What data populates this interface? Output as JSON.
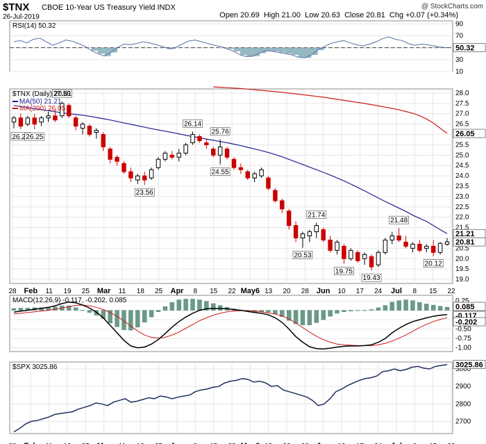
{
  "header": {
    "ticker": "$TNX",
    "description": "CBOE 10-Year US Treasury Yield INDX",
    "date": "26-Jul-2019",
    "open_label": "Open",
    "open": "20.69",
    "high_label": "High",
    "high": "21.00",
    "low_label": "Low",
    "low": "20.63",
    "close_label": "Close",
    "close": "20.81",
    "chg_label": "Chg",
    "chg": "+0.07 (+0.34%)",
    "watermark": "@ StockCharts.com"
  },
  "colors": {
    "up": "#000000",
    "down": "#cc0000",
    "ma50": "#1f1f8f",
    "ma200": "#cc1a1a",
    "hist": "#6a9a88",
    "rsi": "#5a6ea8",
    "spx": "#1f2f5f"
  },
  "chart_data": [
    {
      "type": "line",
      "panel": "rsi",
      "title": "RSI(14) 50.32",
      "last_value": "50.32",
      "y_ticks": [
        "90",
        "70",
        "50",
        "30",
        "10"
      ],
      "ylim": [
        10,
        95
      ],
      "overbought": 70,
      "oversold": 30,
      "values": [
        60,
        62,
        58,
        64,
        66,
        60,
        54,
        58,
        63,
        61,
        57,
        52,
        45,
        40,
        36,
        42,
        50,
        56,
        55,
        57,
        60,
        58,
        55,
        52,
        48,
        50,
        56,
        61,
        63,
        60,
        57,
        54,
        52,
        48,
        44,
        38,
        35,
        36,
        41,
        45,
        44,
        42,
        40,
        38,
        34,
        33,
        38,
        46,
        52,
        57,
        60,
        62,
        58,
        55,
        53,
        56,
        60,
        65,
        68,
        64,
        62,
        57,
        54,
        56,
        55,
        53,
        51,
        50
      ]
    },
    {
      "type": "candlestick",
      "panel": "price",
      "title": "$TNX (Daily) 20.81",
      "y_ticks": [
        "28.0",
        "27.5",
        "27.0",
        "26.5",
        "26.0",
        "25.5",
        "25.0",
        "24.5",
        "24.0",
        "23.5",
        "23.0",
        "22.5",
        "22.0",
        "21.5",
        "21.0",
        "20.5",
        "20.0",
        "19.5",
        "19.0"
      ],
      "ylim": [
        18.8,
        28.2
      ],
      "last_close_label": "20.81",
      "annotations": [
        {
          "text": "26.26",
          "idx": 1,
          "value": 26.26,
          "pos": "below"
        },
        {
          "text": "26.25",
          "idx": 3,
          "value": 26.25,
          "pos": "below"
        },
        {
          "text": "27.59",
          "idx": 7,
          "value": 27.59,
          "pos": "above"
        },
        {
          "text": "23.56",
          "idx": 19,
          "value": 23.56,
          "pos": "below"
        },
        {
          "text": "26.14",
          "idx": 26,
          "value": 26.14,
          "pos": "above"
        },
        {
          "text": "25.76",
          "idx": 30,
          "value": 25.76,
          "pos": "above"
        },
        {
          "text": "24.55",
          "idx": 30,
          "value": 24.55,
          "pos": "below"
        },
        {
          "text": "21.74",
          "idx": 44,
          "value": 21.74,
          "pos": "above"
        },
        {
          "text": "20.53",
          "idx": 42,
          "value": 20.53,
          "pos": "below"
        },
        {
          "text": "19.75",
          "idx": 48,
          "value": 19.75,
          "pos": "below"
        },
        {
          "text": "19.43",
          "idx": 52,
          "value": 19.43,
          "pos": "below"
        },
        {
          "text": "21.48",
          "idx": 56,
          "value": 21.48,
          "pos": "above"
        },
        {
          "text": "20.12",
          "idx": 61,
          "value": 20.12,
          "pos": "below"
        }
      ],
      "ohlc": [
        [
          26.6,
          26.9,
          26.3,
          26.8
        ],
        [
          26.8,
          27.0,
          26.26,
          26.4
        ],
        [
          26.5,
          26.9,
          26.4,
          26.8
        ],
        [
          26.8,
          27.0,
          26.25,
          26.5
        ],
        [
          26.6,
          26.9,
          26.4,
          26.8
        ],
        [
          26.8,
          27.1,
          26.6,
          26.9
        ],
        [
          26.9,
          27.2,
          26.6,
          26.7
        ],
        [
          26.9,
          27.59,
          26.8,
          27.5
        ],
        [
          27.4,
          27.5,
          26.8,
          26.9
        ],
        [
          26.8,
          26.9,
          26.2,
          26.4
        ],
        [
          26.3,
          26.6,
          26.0,
          26.5
        ],
        [
          26.4,
          26.5,
          25.9,
          26.0
        ],
        [
          26.1,
          26.3,
          25.8,
          26.2
        ],
        [
          26.0,
          26.1,
          25.2,
          25.4
        ],
        [
          25.3,
          25.4,
          24.6,
          24.8
        ],
        [
          24.9,
          25.0,
          24.5,
          24.7
        ],
        [
          24.6,
          24.7,
          24.1,
          24.2
        ],
        [
          24.2,
          24.4,
          23.7,
          23.9
        ],
        [
          23.8,
          24.1,
          23.6,
          24.0
        ],
        [
          24.0,
          24.2,
          23.56,
          23.8
        ],
        [
          23.9,
          24.4,
          23.8,
          24.3
        ],
        [
          24.4,
          24.9,
          24.3,
          24.8
        ],
        [
          24.8,
          25.2,
          24.7,
          25.1
        ],
        [
          25.0,
          25.2,
          24.8,
          24.9
        ],
        [
          24.9,
          25.3,
          24.7,
          25.1
        ],
        [
          25.1,
          25.6,
          25.0,
          25.5
        ],
        [
          25.6,
          26.14,
          25.5,
          26.0
        ],
        [
          25.9,
          26.0,
          25.6,
          25.7
        ],
        [
          25.6,
          25.8,
          25.3,
          25.5
        ],
        [
          25.3,
          25.4,
          24.9,
          25.0
        ],
        [
          25.0,
          25.76,
          24.55,
          25.4
        ],
        [
          25.3,
          25.4,
          24.8,
          24.9
        ],
        [
          24.8,
          24.9,
          24.3,
          24.4
        ],
        [
          24.4,
          24.6,
          24.1,
          24.3
        ],
        [
          24.2,
          24.3,
          23.8,
          23.9
        ],
        [
          23.9,
          24.2,
          23.7,
          24.1
        ],
        [
          24.0,
          24.4,
          23.9,
          24.3
        ],
        [
          23.9,
          24.0,
          23.3,
          23.4
        ],
        [
          23.3,
          23.4,
          22.7,
          22.8
        ],
        [
          22.8,
          22.9,
          22.2,
          22.4
        ],
        [
          22.3,
          22.4,
          21.4,
          21.6
        ],
        [
          21.6,
          21.8,
          20.8,
          21.0
        ],
        [
          21.0,
          21.3,
          20.53,
          21.2
        ],
        [
          21.1,
          21.4,
          20.8,
          21.3
        ],
        [
          21.3,
          21.74,
          21.0,
          21.6
        ],
        [
          21.4,
          21.5,
          20.8,
          20.9
        ],
        [
          20.9,
          21.1,
          20.3,
          20.4
        ],
        [
          20.4,
          20.9,
          20.2,
          20.8
        ],
        [
          20.6,
          20.7,
          19.75,
          20.0
        ],
        [
          20.0,
          20.5,
          19.9,
          20.4
        ],
        [
          20.3,
          20.4,
          19.8,
          19.9
        ],
        [
          20.0,
          20.3,
          19.7,
          20.2
        ],
        [
          20.1,
          20.2,
          19.43,
          19.6
        ],
        [
          19.7,
          20.4,
          19.6,
          20.3
        ],
        [
          20.3,
          21.0,
          20.2,
          20.9
        ],
        [
          20.9,
          21.3,
          20.7,
          21.1
        ],
        [
          21.1,
          21.48,
          20.8,
          20.9
        ],
        [
          20.8,
          21.1,
          20.5,
          20.6
        ],
        [
          20.5,
          20.8,
          20.3,
          20.7
        ],
        [
          20.7,
          20.9,
          20.3,
          20.4
        ],
        [
          20.5,
          20.7,
          20.3,
          20.6
        ],
        [
          20.6,
          20.9,
          20.12,
          20.3
        ],
        [
          20.3,
          20.8,
          20.2,
          20.74
        ],
        [
          20.69,
          21.0,
          20.63,
          20.81
        ]
      ],
      "series": [
        {
          "name": "MA(50) 21.21",
          "values": [
            27.4,
            27.35,
            27.3,
            27.25,
            27.2,
            27.15,
            27.1,
            27.05,
            27.0,
            26.97,
            26.93,
            26.88,
            26.82,
            26.76,
            26.7,
            26.63,
            26.56,
            26.49,
            26.42,
            26.35,
            26.28,
            26.22,
            26.16,
            26.1,
            26.03,
            25.96,
            25.9,
            25.84,
            25.78,
            25.72,
            25.66,
            25.6,
            25.53,
            25.46,
            25.38,
            25.3,
            25.22,
            25.13,
            25.03,
            24.92,
            24.8,
            24.67,
            24.55,
            24.42,
            24.3,
            24.17,
            24.04,
            23.9,
            23.76,
            23.6,
            23.44,
            23.28,
            23.1,
            22.93,
            22.76,
            22.6,
            22.44,
            22.28,
            22.1,
            21.95,
            21.8,
            21.6,
            21.4,
            21.21
          ]
        },
        {
          "name": "MA(200) 26.05",
          "values": [
            null,
            null,
            null,
            null,
            null,
            null,
            null,
            null,
            null,
            null,
            null,
            null,
            null,
            null,
            null,
            null,
            null,
            null,
            null,
            null,
            null,
            null,
            null,
            null,
            null,
            null,
            null,
            null,
            null,
            28.3,
            28.28,
            28.26,
            28.24,
            28.22,
            28.19,
            28.16,
            28.13,
            28.1,
            28.07,
            28.04,
            28.0,
            27.96,
            27.92,
            27.88,
            27.84,
            27.8,
            27.75,
            27.7,
            27.65,
            27.6,
            27.55,
            27.5,
            27.44,
            27.38,
            27.32,
            27.26,
            27.19,
            27.11,
            27.02,
            26.91,
            26.75,
            26.55,
            26.3,
            26.05
          ]
        }
      ],
      "ma_last": [
        "21.21",
        "26.05"
      ]
    },
    {
      "type": "line",
      "panel": "macd",
      "title": "MACD(12,26,9) -0.117, -0.202, 0.085",
      "y_ticks": [
        "0.25",
        "0.00",
        "-0.25",
        "-0.50",
        "-0.75",
        "-1.00"
      ],
      "ylim": [
        -1.1,
        0.4
      ],
      "last_labels": [
        "0.085",
        "-0.117",
        "-0.202"
      ],
      "series": [
        {
          "name": "MACD",
          "values": [
            -0.05,
            -0.02,
            0.0,
            0.03,
            0.05,
            0.08,
            0.12,
            0.18,
            0.22,
            0.2,
            0.14,
            0.06,
            -0.05,
            -0.2,
            -0.4,
            -0.6,
            -0.8,
            -0.95,
            -1.0,
            -0.98,
            -0.9,
            -0.78,
            -0.62,
            -0.45,
            -0.3,
            -0.18,
            -0.08,
            0.0,
            0.04,
            0.05,
            0.05,
            0.04,
            0.02,
            0.0,
            -0.03,
            -0.06,
            -0.08,
            -0.12,
            -0.2,
            -0.32,
            -0.5,
            -0.7,
            -0.85,
            -0.97,
            -1.02,
            -1.03,
            -1.01,
            -0.98,
            -0.96,
            -0.95,
            -0.95,
            -0.94,
            -0.92,
            -0.85,
            -0.75,
            -0.6,
            -0.48,
            -0.38,
            -0.3,
            -0.25,
            -0.2,
            -0.16,
            -0.13,
            -0.117
          ]
        },
        {
          "name": "Signal",
          "values": [
            -0.1,
            -0.08,
            -0.06,
            -0.04,
            -0.02,
            0.0,
            0.03,
            0.06,
            0.1,
            0.13,
            0.14,
            0.12,
            0.08,
            0.02,
            -0.06,
            -0.16,
            -0.28,
            -0.42,
            -0.55,
            -0.66,
            -0.72,
            -0.74,
            -0.72,
            -0.66,
            -0.58,
            -0.48,
            -0.38,
            -0.28,
            -0.2,
            -0.13,
            -0.08,
            -0.04,
            -0.02,
            -0.01,
            -0.01,
            -0.02,
            -0.04,
            -0.07,
            -0.1,
            -0.15,
            -0.23,
            -0.34,
            -0.46,
            -0.58,
            -0.69,
            -0.78,
            -0.85,
            -0.9,
            -0.92,
            -0.93,
            -0.94,
            -0.94,
            -0.94,
            -0.92,
            -0.88,
            -0.82,
            -0.74,
            -0.66,
            -0.56,
            -0.46,
            -0.37,
            -0.3,
            -0.24,
            -0.202
          ]
        }
      ]
    },
    {
      "type": "line",
      "panel": "spx",
      "title": "$SPX 3025.86",
      "last_value": "3025.86",
      "y_ticks": [
        "3000",
        "2900",
        "2800",
        "2700"
      ],
      "ylim": [
        2630,
        3040
      ],
      "values": [
        2640,
        2660,
        2685,
        2700,
        2705,
        2715,
        2725,
        2740,
        2745,
        2750,
        2755,
        2770,
        2780,
        2790,
        2805,
        2800,
        2790,
        2810,
        2820,
        2830,
        2810,
        2815,
        2825,
        2835,
        2830,
        2845,
        2840,
        2830,
        2838,
        2845,
        2850,
        2870,
        2880,
        2885,
        2895,
        2900,
        2920,
        2930,
        2935,
        2945,
        2940,
        2925,
        2930,
        2920,
        2900,
        2905,
        2880,
        2870,
        2860,
        2850,
        2840,
        2820,
        2790,
        2800,
        2830,
        2870,
        2885,
        2905,
        2920,
        2935,
        2945,
        2950,
        2960,
        2985,
        2990,
        3000,
        2990,
        2998,
        3010,
        3015,
        3005,
        3000,
        3015,
        3020,
        3025
      ]
    }
  ],
  "x_axis": {
    "labels": [
      "28",
      "Feb",
      "11",
      "19",
      "25",
      "Mar",
      "11",
      "18",
      "25",
      "Apr",
      "8",
      "15",
      "22",
      "May6",
      "13",
      "20",
      "28",
      "Jun",
      "10",
      "17",
      "24",
      "Jul",
      "8",
      "15",
      "22"
    ],
    "bold": [
      false,
      true,
      false,
      false,
      false,
      true,
      false,
      false,
      false,
      true,
      false,
      false,
      false,
      true,
      false,
      false,
      false,
      true,
      false,
      false,
      false,
      true,
      false,
      false,
      false
    ]
  }
}
